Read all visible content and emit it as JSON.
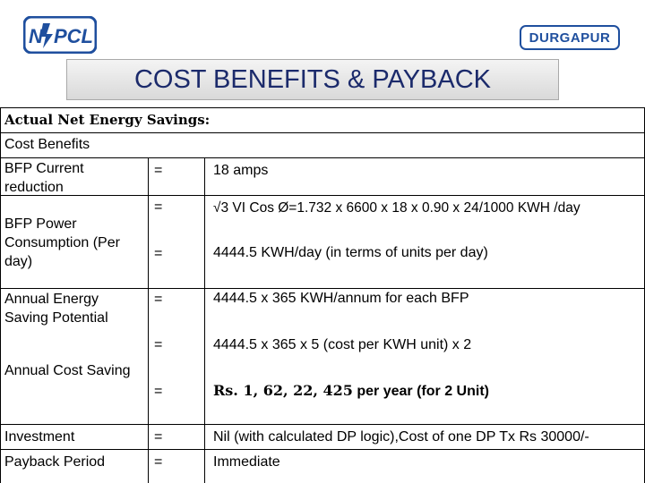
{
  "header": {
    "logo_text": "NTPCL",
    "badge": "DURGAPUR",
    "title": "COST BENEFITS & PAYBACK"
  },
  "table": {
    "section_label": "Actual Net Energy Savings:",
    "subheading": "Cost Benefits",
    "rows": [
      {
        "label": "BFP Current reduction",
        "eq": "=",
        "value": "18 amps"
      },
      {
        "label": "BFP Power Consumption (Per day)",
        "eq1": "=",
        "value1": "√3 VI Cos Ø=1.732 x 6600 x 18 x 0.90 x 24/1000 KWH /day",
        "eq2": "=",
        "value2": "4444.5 KWH/day (in terms of units per day)"
      },
      {
        "label": "Annual Energy Saving Potential",
        "eq": "=",
        "value": "4444.5 x 365 KWH/annum for each BFP"
      },
      {
        "label": "Annual Cost Saving",
        "eq1": "=",
        "value1": "4444.5 x 365 x 5 (cost per KWH unit) x 2",
        "eq2": "=",
        "value2_prefix": "Rs. 1, 62, 22, 425",
        "value2_suffix": " per year (for 2 Unit)"
      },
      {
        "label": "Investment",
        "eq": "=",
        "value": "Nil (with calculated DP logic),Cost of one DP Tx Rs 30000/-"
      },
      {
        "label": "Payback Period",
        "eq": "=",
        "value": "Immediate"
      }
    ]
  },
  "colors": {
    "brand_blue": "#1f4f9e",
    "title_text": "#1b2a6b"
  }
}
